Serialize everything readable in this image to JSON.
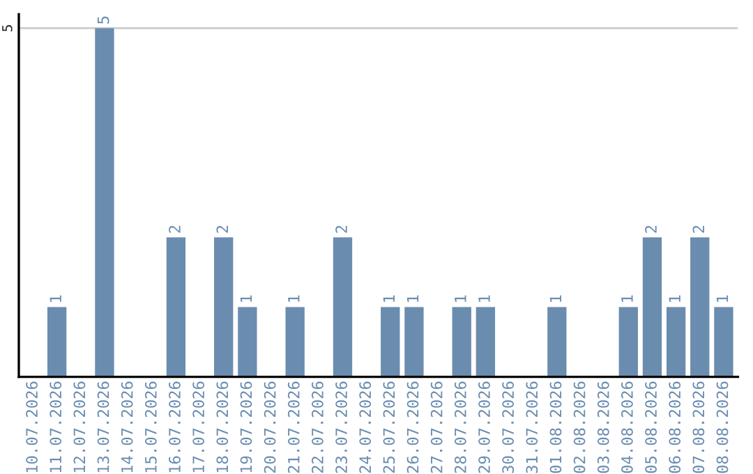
{
  "chart_data": {
    "type": "bar",
    "categories": [
      "10.07.2026",
      "11.07.2026",
      "12.07.2026",
      "13.07.2026",
      "14.07.2026",
      "15.07.2026",
      "16.07.2026",
      "17.07.2026",
      "18.07.2026",
      "19.07.2026",
      "20.07.2026",
      "21.07.2026",
      "22.07.2026",
      "23.07.2026",
      "24.07.2026",
      "25.07.2026",
      "26.07.2026",
      "27.07.2026",
      "28.07.2026",
      "29.07.2026",
      "30.07.2026",
      "31.07.2026",
      "01.08.2026",
      "02.08.2026",
      "03.08.2026",
      "04.08.2026",
      "05.08.2026",
      "06.08.2026",
      "07.08.2026",
      "08.08.2026"
    ],
    "values": [
      0,
      1,
      0,
      5,
      0,
      0,
      2,
      0,
      2,
      1,
      0,
      1,
      0,
      2,
      0,
      1,
      1,
      0,
      1,
      1,
      0,
      0,
      1,
      0,
      0,
      1,
      2,
      1,
      2,
      1
    ],
    "value_labels": [
      null,
      "1",
      null,
      "5",
      null,
      null,
      "2",
      null,
      "2",
      "1",
      null,
      "1",
      null,
      "2",
      null,
      "1",
      "1",
      null,
      "1",
      "1",
      null,
      null,
      "1",
      null,
      null,
      "1",
      "2",
      "1",
      "2",
      "1"
    ],
    "color": "#6a8caf",
    "ylim": [
      0,
      5.2
    ],
    "yticks": [
      5
    ],
    "grid": "y"
  }
}
